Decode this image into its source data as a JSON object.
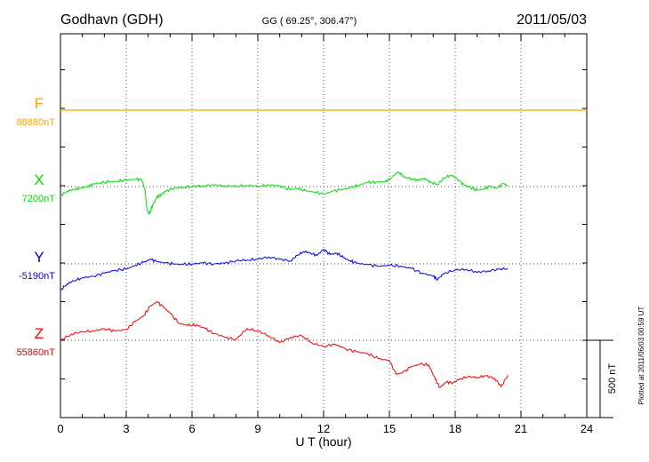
{
  "chart_data": {
    "type": "line",
    "title": "Godhavn (GDH)",
    "subtitle": "GG ( 69.25°, 306.47°)",
    "date": "2011/05/03",
    "xlabel": "U T (hour)",
    "xlim": [
      0,
      24
    ],
    "xticks": [
      "0",
      "3",
      "6",
      "9",
      "12",
      "15",
      "18",
      "21",
      "24"
    ],
    "grid": true,
    "scale_bar_label": "500 nT",
    "scale_bar_nT": 500,
    "footer": "Plotted at 2011/06/03 00:59 UT",
    "series": [
      {
        "name": "F",
        "baseline_label": "88880nT",
        "color": "#ffa500",
        "x": [
          0,
          24
        ],
        "y": [
          0,
          0
        ]
      },
      {
        "name": "X",
        "baseline_label": "7200nT",
        "color": "#00e000",
        "x": [
          0,
          0.3,
          0.6,
          0.9,
          1.2,
          1.5,
          1.8,
          2.2,
          2.6,
          3.0,
          3.4,
          3.7,
          3.85,
          3.95,
          4.05,
          4.2,
          4.4,
          4.6,
          4.8,
          5.2,
          5.6,
          6.0,
          6.5,
          7.0,
          7.5,
          8.0,
          8.5,
          9.0,
          9.5,
          10.0,
          10.5,
          10.8,
          11.2,
          11.6,
          12.0,
          12.4,
          12.8,
          13.2,
          13.6,
          14.0,
          14.4,
          14.8,
          15.1,
          15.4,
          15.7,
          16.0,
          16.3,
          16.6,
          16.9,
          17.2,
          17.5,
          17.8,
          18.1,
          18.4,
          18.7,
          19.0,
          19.3,
          19.6,
          19.9,
          20.2,
          20.4
        ],
        "y": [
          -60,
          -30,
          -20,
          -10,
          0,
          15,
          25,
          30,
          35,
          40,
          48,
          45,
          -20,
          -150,
          -180,
          -120,
          -70,
          -50,
          -30,
          -10,
          -5,
          0,
          5,
          10,
          5,
          2,
          8,
          2,
          10,
          5,
          -20,
          -10,
          -30,
          -35,
          -50,
          -30,
          -20,
          -10,
          10,
          25,
          30,
          30,
          60,
          95,
          60,
          50,
          40,
          55,
          25,
          15,
          55,
          75,
          50,
          10,
          -5,
          -25,
          -15,
          0,
          -10,
          20,
          5
        ]
      },
      {
        "name": "Y",
        "baseline_label": "-5190nT",
        "color": "#0000ff",
        "x": [
          0,
          0.3,
          0.6,
          1.0,
          1.5,
          2.0,
          2.5,
          3.0,
          3.4,
          3.8,
          4.1,
          4.4,
          4.8,
          5.2,
          5.6,
          6.0,
          6.5,
          7.0,
          7.5,
          8.0,
          8.5,
          9.0,
          9.5,
          10.0,
          10.5,
          10.8,
          11.1,
          11.4,
          11.7,
          12.0,
          12.3,
          12.6,
          12.9,
          13.2,
          13.5,
          14.0,
          14.5,
          15.0,
          15.5,
          16.0,
          16.5,
          17.0,
          17.2,
          17.5,
          18.0,
          18.5,
          19.0,
          19.5,
          20.0,
          20.4
        ],
        "y": [
          -170,
          -130,
          -110,
          -90,
          -80,
          -60,
          -40,
          -35,
          -10,
          10,
          30,
          15,
          5,
          0,
          -5,
          0,
          5,
          0,
          5,
          20,
          25,
          30,
          45,
          30,
          20,
          55,
          80,
          70,
          55,
          95,
          60,
          70,
          40,
          20,
          5,
          -5,
          -15,
          -10,
          -15,
          -30,
          -60,
          -80,
          -100,
          -60,
          -40,
          -35,
          -55,
          -45,
          -35,
          -30
        ]
      },
      {
        "name": "Z",
        "baseline_label": "55860nT",
        "color": "#ff0000",
        "x": [
          0,
          0.5,
          1.0,
          1.5,
          2.0,
          2.5,
          3.0,
          3.4,
          3.8,
          4.1,
          4.4,
          4.7,
          5.0,
          5.4,
          5.8,
          6.2,
          6.6,
          7.0,
          7.5,
          8.0,
          8.5,
          9.0,
          9.5,
          10.0,
          10.5,
          11.0,
          11.5,
          12.0,
          12.5,
          13.0,
          13.5,
          14.0,
          14.5,
          15.0,
          15.3,
          15.6,
          16.0,
          16.4,
          16.8,
          17.1,
          17.3,
          17.6,
          17.9,
          18.2,
          18.6,
          19.0,
          19.4,
          19.8,
          20.1,
          20.4
        ],
        "y": [
          0,
          40,
          55,
          60,
          75,
          60,
          70,
          120,
          160,
          220,
          250,
          215,
          175,
          110,
          95,
          100,
          75,
          45,
          20,
          5,
          75,
          60,
          30,
          -15,
          20,
          30,
          -20,
          -40,
          -25,
          -55,
          -75,
          -85,
          -120,
          -130,
          -220,
          -210,
          -170,
          -155,
          -160,
          -255,
          -305,
          -270,
          -275,
          -250,
          -235,
          -240,
          -230,
          -245,
          -300,
          -225
        ]
      }
    ]
  }
}
